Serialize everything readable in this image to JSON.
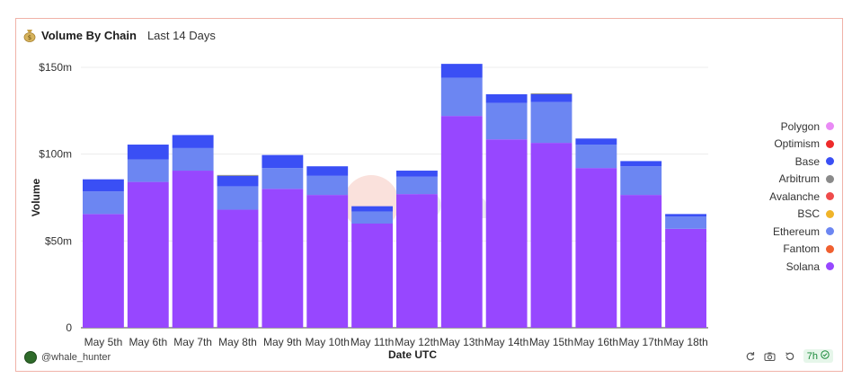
{
  "header": {
    "icon": "money-bag-icon",
    "title": "Volume By Chain",
    "subtitle": "Last 14 Days"
  },
  "watermark": "Dune",
  "footer": {
    "user": "@whale_hunter",
    "age": "7h",
    "tools": [
      "refresh-icon",
      "camera-icon",
      "history-icon",
      "check-circle-icon"
    ]
  },
  "colors": {
    "Polygon": "#e98af5",
    "Optimism": "#ee2b2b",
    "Base": "#3a4ff5",
    "Arbitrum": "#8a8a8a",
    "Avalanche": "#ef4b4b",
    "BSC": "#f0b429",
    "Ethereum": "#6c86f2",
    "Fantom": "#f06030",
    "Solana": "#9747ff"
  },
  "chart_data": {
    "type": "bar",
    "stacked": true,
    "title": "",
    "xlabel": "Date UTC",
    "ylabel": "Volume",
    "ylim": [
      0,
      150000000
    ],
    "yticks": [
      "0",
      "$50m",
      "$100m",
      "$150m"
    ],
    "categories": [
      "May 5th",
      "May 6th",
      "May 7th",
      "May 8th",
      "May 9th",
      "May 10th",
      "May 11th",
      "May 12th",
      "May 13th",
      "May 14th",
      "May 15th",
      "May 16th",
      "May 17th",
      "May 18th"
    ],
    "legend": [
      "Polygon",
      "Optimism",
      "Base",
      "Arbitrum",
      "Avalanche",
      "BSC",
      "Ethereum",
      "Fantom",
      "Solana"
    ],
    "legend_position": "right",
    "series": [
      {
        "name": "Solana",
        "values": [
          65500000,
          84000000,
          90500000,
          68000000,
          80000000,
          76500000,
          60000000,
          77000000,
          122000000,
          108500000,
          106500000,
          92000000,
          76500000,
          57000000
        ]
      },
      {
        "name": "Ethereum",
        "values": [
          13000000,
          13000000,
          13000000,
          13500000,
          12000000,
          11000000,
          7000000,
          10000000,
          22000000,
          21000000,
          23500000,
          13500000,
          16500000,
          7000000
        ]
      },
      {
        "name": "Base",
        "values": [
          7000000,
          8500000,
          7500000,
          6000000,
          7500000,
          5500000,
          3000000,
          3500000,
          8000000,
          5000000,
          4500000,
          3500000,
          3000000,
          1500000
        ]
      },
      {
        "name": "Arbitrum",
        "values": [
          0,
          0,
          0,
          500000,
          0,
          0,
          0,
          0,
          0,
          0,
          500000,
          0,
          0,
          0
        ]
      }
    ]
  }
}
